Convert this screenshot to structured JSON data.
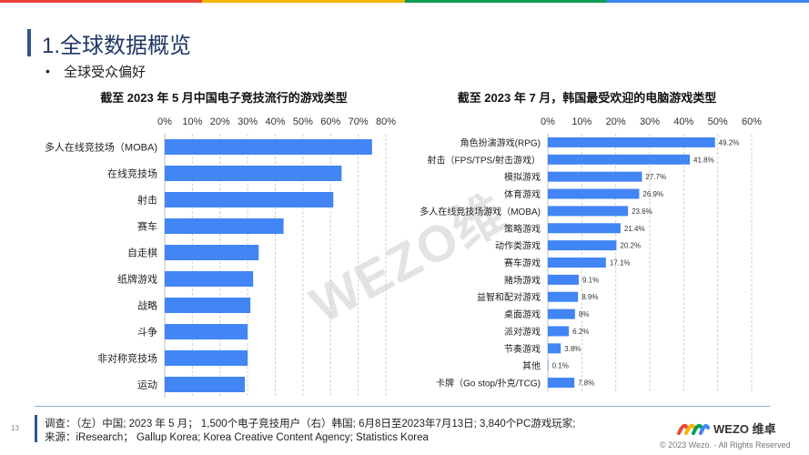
{
  "colors": {
    "accent": "#4285f4",
    "brand_blue": "#2f5597",
    "title": "#1f3864"
  },
  "top_bar_colors": [
    "#e8453c",
    "#f4b400",
    "#0f9d58",
    "#4285f4"
  ],
  "header": {
    "title": "1.全球数据概览",
    "bullet": "全球受众偏好"
  },
  "watermark": "WEZO维",
  "chart_data": [
    {
      "type": "bar",
      "orientation": "horizontal",
      "title": "截至 2023 年 5 月中国电子竞技流行的游戏类型",
      "categories": [
        "多人在线竞技场（MOBA)",
        "在线竞技场",
        "射击",
        "赛车",
        "自走棋",
        "纸牌游戏",
        "战略",
        "斗争",
        "非对称竞技场",
        "运动"
      ],
      "values": [
        75,
        64,
        61,
        43,
        34,
        32,
        31,
        30,
        30,
        29
      ],
      "xlim": [
        0,
        80
      ],
      "ticks": [
        "0%",
        "10%",
        "20%",
        "30%",
        "40%",
        "50%",
        "60%",
        "70%",
        "80%"
      ],
      "grid": true,
      "color": "#4285f4"
    },
    {
      "type": "bar",
      "orientation": "horizontal",
      "title": "截至 2023 年 7 月，韩国最受欢迎的电脑游戏类型",
      "categories": [
        "角色扮演游戏(RPG)",
        "射击（FPS/TPS/射击游戏）",
        "模拟游戏",
        "体育游戏",
        "多人在线竞技场游戏（MOBA)",
        "策略游戏",
        "动作类游戏",
        "赛车游戏",
        "赌场游戏",
        "益智和配对游戏",
        "桌面游戏",
        "派对游戏",
        "节奏游戏",
        "其他",
        "卡牌（Go stop/扑克/TCG)"
      ],
      "values": [
        49.2,
        41.8,
        27.7,
        26.9,
        23.6,
        21.4,
        20.2,
        17.1,
        9.1,
        8.9,
        8,
        6.2,
        3.8,
        0.1,
        7.8
      ],
      "value_labels": [
        "49.2%",
        "41.8%",
        "27.7%",
        "26.9%",
        "23.6%",
        "21.4%",
        "20.2%",
        "17.1%",
        "9.1%",
        "8.9%",
        "8%",
        "6.2%",
        "3.8%",
        "0.1%",
        "7.8%"
      ],
      "xlim": [
        0,
        60
      ],
      "ticks": [
        "0%",
        "10%",
        "20%",
        "30%",
        "40%",
        "50%",
        "60%"
      ],
      "grid": true,
      "color": "#4285f4"
    }
  ],
  "footer": {
    "page_number": "13",
    "survey_note": "调查：（左）中国; 2023 年 5 月；  1,500个电子竞技用户（右）韩国;   6月8日至2023年7月13日;   3,840个PC游戏玩家;",
    "source_note": "来源：iResearch；  Gallup Korea; Korea Creative Content Agency; Statistics Korea",
    "logo_text": "WEZO 维卓",
    "copyright": "© 2023 Wezo. - All Rights Reserved"
  }
}
